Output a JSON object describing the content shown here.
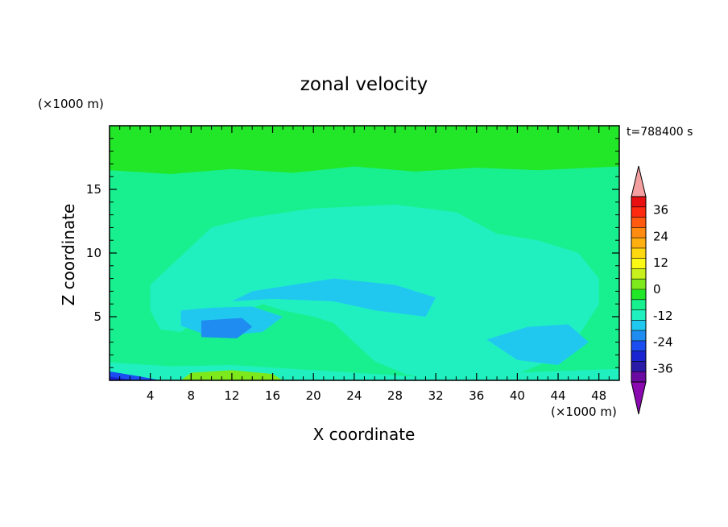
{
  "chart_data": {
    "type": "heatmap",
    "title": "zonal velocity",
    "xlabel": "X coordinate",
    "ylabel": "Z coordinate",
    "x_unit": "(×1000 m)",
    "y_unit": "(×1000 m)",
    "time_label": "t=788400 s",
    "xlim": [
      0,
      50
    ],
    "ylim": [
      0,
      20
    ],
    "x_ticks": [
      4,
      8,
      12,
      16,
      20,
      24,
      28,
      32,
      36,
      40,
      44,
      48
    ],
    "y_ticks": [
      5,
      10,
      15
    ],
    "colorbar": {
      "min": -42,
      "max": 42,
      "step": 6,
      "labels": [
        36,
        24,
        12,
        0,
        -12,
        -24,
        -36
      ],
      "colors": [
        "#6a0aa0",
        "#2a1aa8",
        "#1a24d0",
        "#1a4ef0",
        "#1e8cf0",
        "#20c8f0",
        "#20f0c0",
        "#18f090",
        "#22e628",
        "#7de81c",
        "#c8f01c",
        "#fafa16",
        "#ffd810",
        "#ffb010",
        "#ff8c10",
        "#ff5a10",
        "#ff2a10",
        "#e81010"
      ],
      "under_color": "#8a0ab0",
      "over_color": "#f5a0a0"
    },
    "regions": [
      {
        "v": 4,
        "pts": [
          [
            0,
            0
          ],
          [
            50,
            0
          ],
          [
            50,
            20
          ],
          [
            0,
            20
          ]
        ]
      },
      {
        "v": 8,
        "pts": [
          [
            0,
            16.5
          ],
          [
            6,
            16.2
          ],
          [
            12,
            16.6
          ],
          [
            18,
            16.3
          ],
          [
            24,
            16.8
          ],
          [
            30,
            16.4
          ],
          [
            36,
            16.7
          ],
          [
            42,
            16.5
          ],
          [
            50,
            16.8
          ],
          [
            50,
            20
          ],
          [
            0,
            20
          ]
        ]
      },
      {
        "v": 10,
        "pts": [
          [
            4,
            18.1
          ],
          [
            10,
            17.8
          ],
          [
            16,
            18.3
          ],
          [
            12,
            18.6
          ],
          [
            5,
            18.5
          ]
        ]
      },
      {
        "v": 10,
        "pts": [
          [
            14,
            19.2
          ],
          [
            22,
            18.6
          ],
          [
            32,
            18.8
          ],
          [
            40,
            19.3
          ],
          [
            34,
            19.9
          ],
          [
            20,
            19.9
          ]
        ]
      },
      {
        "v": 2,
        "pts": [
          [
            0,
            0
          ],
          [
            50,
            0
          ],
          [
            50,
            15
          ],
          [
            44,
            15.2
          ],
          [
            38,
            15.4
          ],
          [
            32,
            15.8
          ],
          [
            26,
            15.2
          ],
          [
            20,
            15
          ],
          [
            14,
            14.8
          ],
          [
            8,
            15.2
          ],
          [
            0,
            15
          ]
        ]
      },
      {
        "v": 4,
        "pts": [
          [
            0,
            5
          ],
          [
            2,
            6.5
          ],
          [
            4,
            7
          ],
          [
            5,
            6
          ],
          [
            6,
            4
          ],
          [
            4,
            2.5
          ],
          [
            0,
            2.8
          ]
        ]
      },
      {
        "v": 4,
        "pts": [
          [
            20,
            4.5
          ],
          [
            23,
            4.2
          ],
          [
            25,
            3
          ],
          [
            23,
            2
          ],
          [
            20,
            2.8
          ]
        ]
      },
      {
        "v": 4,
        "pts": [
          [
            34,
            4
          ],
          [
            38,
            4.3
          ],
          [
            40,
            3
          ],
          [
            38,
            2
          ],
          [
            35,
            2.5
          ]
        ]
      },
      {
        "v": 4,
        "pts": [
          [
            45,
            1.5
          ],
          [
            47.5,
            2
          ],
          [
            48.5,
            3.5
          ],
          [
            47,
            4.5
          ],
          [
            45,
            3.5
          ]
        ]
      },
      {
        "v": -2,
        "pts": [
          [
            10,
            12
          ],
          [
            14,
            12.8
          ],
          [
            20,
            13.5
          ],
          [
            28,
            13.8
          ],
          [
            34,
            13.2
          ],
          [
            38,
            11.5
          ],
          [
            42,
            11
          ],
          [
            46,
            10
          ],
          [
            48,
            8
          ],
          [
            48,
            6
          ],
          [
            46,
            3.5
          ],
          [
            43,
            1.5
          ],
          [
            40,
            0.5
          ],
          [
            36,
            0.5
          ],
          [
            32,
            0
          ],
          [
            29,
            0.5
          ],
          [
            26,
            1.5
          ],
          [
            24,
            3
          ],
          [
            22,
            4.5
          ],
          [
            20,
            5
          ],
          [
            17,
            5.5
          ],
          [
            15,
            6
          ],
          [
            12,
            5
          ],
          [
            9,
            5
          ],
          [
            7,
            3.8
          ],
          [
            5,
            4
          ],
          [
            4,
            5.5
          ],
          [
            4,
            7.5
          ],
          [
            6,
            9
          ],
          [
            8,
            10.5
          ]
        ]
      },
      {
        "v": -2,
        "pts": [
          [
            0,
            0
          ],
          [
            50,
            0
          ],
          [
            50,
            0.9
          ],
          [
            40,
            0.6
          ],
          [
            30,
            0.3
          ],
          [
            20,
            0.8
          ],
          [
            12,
            1.2
          ],
          [
            6,
            1.1
          ],
          [
            0,
            1.4
          ]
        ]
      },
      {
        "v": -8,
        "pts": [
          [
            14,
            7
          ],
          [
            22,
            8
          ],
          [
            28,
            7.5
          ],
          [
            32,
            6.5
          ],
          [
            31,
            5
          ],
          [
            26,
            5.5
          ],
          [
            22,
            6.2
          ],
          [
            16,
            6.4
          ],
          [
            12,
            6.2
          ]
        ]
      },
      {
        "v": -8,
        "pts": [
          [
            7,
            5.5
          ],
          [
            10,
            5.7
          ],
          [
            14,
            5.8
          ],
          [
            17,
            5
          ],
          [
            15,
            3.8
          ],
          [
            10,
            3.4
          ],
          [
            7,
            4.3
          ]
        ]
      },
      {
        "v": -8,
        "pts": [
          [
            37,
            3.2
          ],
          [
            41,
            4.2
          ],
          [
            45,
            4.4
          ],
          [
            47,
            3
          ],
          [
            44,
            1.2
          ],
          [
            40,
            1.6
          ]
        ]
      },
      {
        "v": -14,
        "pts": [
          [
            9,
            4.7
          ],
          [
            13,
            4.9
          ],
          [
            14,
            4.2
          ],
          [
            12.5,
            3.3
          ],
          [
            9,
            3.4
          ]
        ]
      },
      {
        "v": 14,
        "pts": [
          [
            7,
            0
          ],
          [
            17,
            0
          ],
          [
            16,
            0.5
          ],
          [
            12,
            0.8
          ],
          [
            8,
            0.6
          ]
        ]
      },
      {
        "v": -20,
        "pts": [
          [
            0,
            0
          ],
          [
            5,
            0
          ],
          [
            3,
            0.3
          ],
          [
            0,
            0.7
          ]
        ]
      },
      {
        "v": -26,
        "pts": [
          [
            0,
            0
          ],
          [
            2.5,
            0
          ],
          [
            0,
            0.3
          ]
        ]
      }
    ]
  }
}
